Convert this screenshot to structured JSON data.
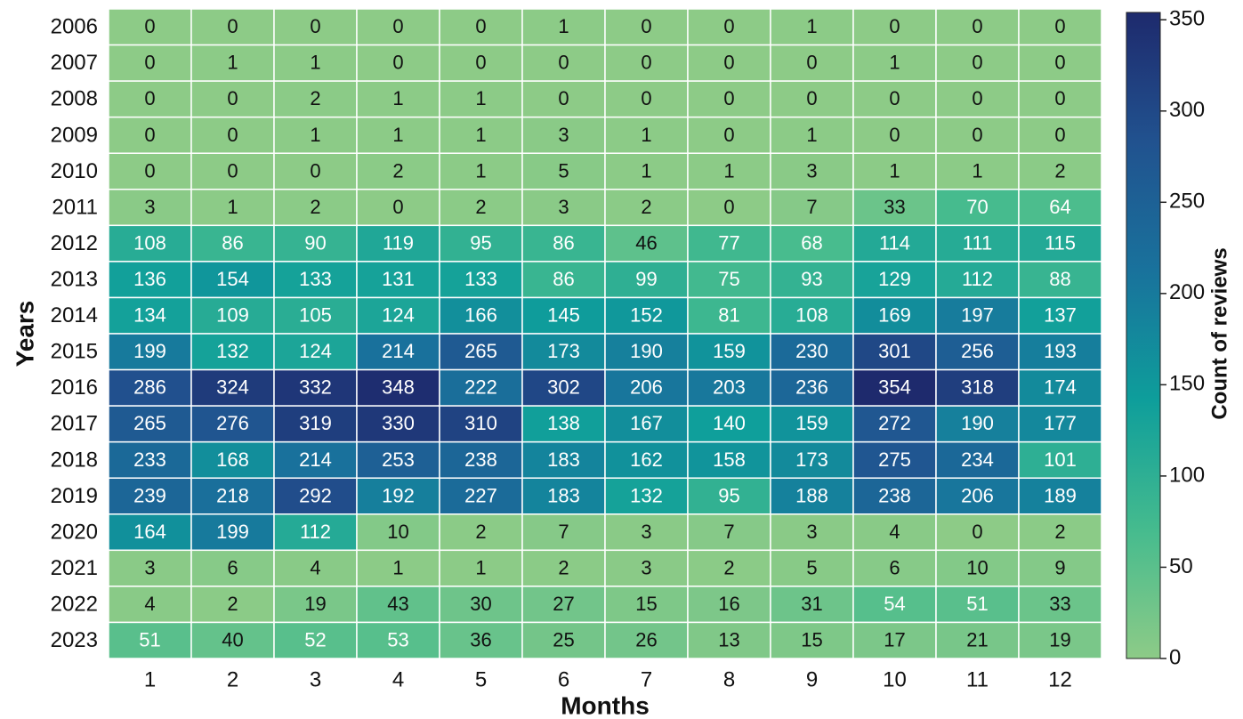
{
  "chart_data": {
    "type": "heatmap",
    "x_label": "Months",
    "y_label": "Years",
    "colorbar_label": "Count of reviews",
    "x": [
      1,
      2,
      3,
      4,
      5,
      6,
      7,
      8,
      9,
      10,
      11,
      12
    ],
    "y": [
      2006,
      2007,
      2008,
      2009,
      2010,
      2011,
      2012,
      2013,
      2014,
      2015,
      2016,
      2017,
      2018,
      2019,
      2020,
      2021,
      2022,
      2023
    ],
    "values": [
      [
        0,
        0,
        0,
        0,
        0,
        1,
        0,
        0,
        1,
        0,
        0,
        0
      ],
      [
        0,
        1,
        1,
        0,
        0,
        0,
        0,
        0,
        0,
        1,
        0,
        0
      ],
      [
        0,
        0,
        2,
        1,
        1,
        0,
        0,
        0,
        0,
        0,
        0,
        0
      ],
      [
        0,
        0,
        1,
        1,
        1,
        3,
        1,
        0,
        1,
        0,
        0,
        0
      ],
      [
        0,
        0,
        0,
        2,
        1,
        5,
        1,
        1,
        3,
        1,
        1,
        2
      ],
      [
        3,
        1,
        2,
        0,
        2,
        3,
        2,
        0,
        7,
        33,
        70,
        64
      ],
      [
        108,
        86,
        90,
        119,
        95,
        86,
        46,
        77,
        68,
        114,
        111,
        115
      ],
      [
        136,
        154,
        133,
        131,
        133,
        86,
        99,
        75,
        93,
        129,
        112,
        88
      ],
      [
        134,
        109,
        105,
        124,
        166,
        145,
        152,
        81,
        108,
        169,
        197,
        137
      ],
      [
        199,
        132,
        124,
        214,
        265,
        173,
        190,
        159,
        230,
        301,
        256,
        193
      ],
      [
        286,
        324,
        332,
        348,
        222,
        302,
        206,
        203,
        236,
        354,
        318,
        174
      ],
      [
        265,
        276,
        319,
        330,
        310,
        138,
        167,
        140,
        159,
        272,
        190,
        177
      ],
      [
        233,
        168,
        214,
        253,
        238,
        183,
        162,
        158,
        173,
        275,
        234,
        101
      ],
      [
        239,
        218,
        292,
        192,
        227,
        183,
        132,
        95,
        188,
        238,
        206,
        189
      ],
      [
        164,
        199,
        112,
        10,
        2,
        7,
        3,
        7,
        3,
        4,
        0,
        2
      ],
      [
        3,
        6,
        4,
        1,
        1,
        2,
        3,
        2,
        5,
        6,
        10,
        9
      ],
      [
        4,
        2,
        19,
        43,
        30,
        27,
        15,
        16,
        31,
        54,
        51,
        33
      ],
      [
        51,
        40,
        52,
        53,
        36,
        25,
        26,
        13,
        15,
        17,
        21,
        19
      ]
    ],
    "colormap": [
      "#8dcb87",
      "#45bb8e",
      "#0e9e9b",
      "#19729c",
      "#21528f",
      "#1e2a6d"
    ],
    "clim": [
      0,
      354
    ],
    "cticks": [
      0,
      50,
      100,
      150,
      200,
      250,
      300,
      350
    ]
  }
}
